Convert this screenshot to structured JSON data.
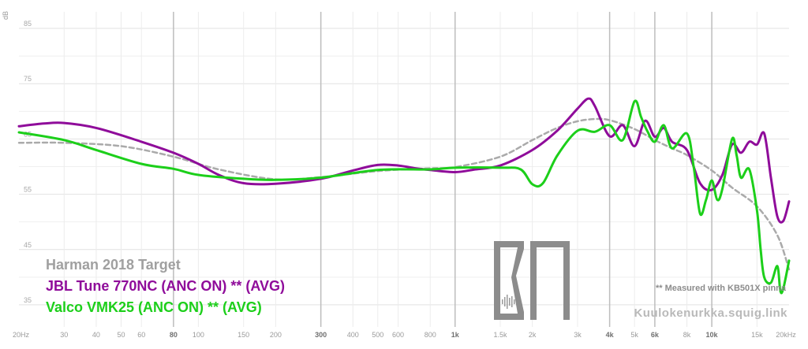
{
  "chart_data": {
    "type": "line",
    "ylabel": "dB",
    "x_scale": "log",
    "xlim": [
      20,
      20000
    ],
    "ylim": [
      31,
      88
    ],
    "y_ticks": [
      35,
      45,
      55,
      65,
      75,
      85
    ],
    "x_ticks": [
      {
        "value": 20,
        "label": "20Hz",
        "major": false
      },
      {
        "value": 30,
        "label": "30",
        "major": false
      },
      {
        "value": 40,
        "label": "40",
        "major": false
      },
      {
        "value": 50,
        "label": "50",
        "major": false
      },
      {
        "value": 60,
        "label": "60",
        "major": false
      },
      {
        "value": 80,
        "label": "80",
        "major": true
      },
      {
        "value": 100,
        "label": "100",
        "major": false
      },
      {
        "value": 150,
        "label": "150",
        "major": false
      },
      {
        "value": 200,
        "label": "200",
        "major": false
      },
      {
        "value": 300,
        "label": "300",
        "major": true
      },
      {
        "value": 400,
        "label": "400",
        "major": false
      },
      {
        "value": 500,
        "label": "500",
        "major": false
      },
      {
        "value": 600,
        "label": "600",
        "major": false
      },
      {
        "value": 800,
        "label": "800",
        "major": false
      },
      {
        "value": 1000,
        "label": "1k",
        "major": true
      },
      {
        "value": 1500,
        "label": "1.5k",
        "major": false
      },
      {
        "value": 2000,
        "label": "2k",
        "major": false
      },
      {
        "value": 3000,
        "label": "3k",
        "major": false
      },
      {
        "value": 4000,
        "label": "4k",
        "major": true
      },
      {
        "value": 5000,
        "label": "5k",
        "major": false
      },
      {
        "value": 6000,
        "label": "6k",
        "major": true
      },
      {
        "value": 8000,
        "label": "8k",
        "major": false
      },
      {
        "value": 10000,
        "label": "10k",
        "major": true
      },
      {
        "value": 15000,
        "label": "15k",
        "major": false
      },
      {
        "value": 20000,
        "label": "20kHz",
        "major": false
      }
    ],
    "grid": true,
    "legend_position": "bottom-left",
    "series": [
      {
        "name": "Harman 2018 Target",
        "color": "#aaaaaa",
        "dashed": true,
        "x": [
          20,
          30,
          50,
          80,
          120,
          200,
          300,
          500,
          800,
          1000,
          1500,
          2000,
          2500,
          3000,
          3500,
          4000,
          5000,
          6000,
          7000,
          8000,
          10000,
          12000,
          15000,
          18000,
          20000
        ],
        "y": [
          64.3,
          64.3,
          63.7,
          61.8,
          59.5,
          57.7,
          58.1,
          59.2,
          59.7,
          59.9,
          61.8,
          64.8,
          67.0,
          68.2,
          68.6,
          68.4,
          66.8,
          64.8,
          63.3,
          62.1,
          59.3,
          56.2,
          52.8,
          47.6,
          41.4
        ]
      },
      {
        "name": "JBL Tune 770NC (ANC ON) ** (AVG)",
        "color": "#8f0c9a",
        "dashed": false,
        "x": [
          20,
          25,
          30,
          40,
          60,
          80,
          100,
          120,
          150,
          200,
          300,
          400,
          500,
          600,
          700,
          800,
          1000,
          1200,
          1500,
          2000,
          2500,
          3000,
          3300,
          3500,
          4000,
          4500,
          5000,
          5500,
          6000,
          6500,
          7000,
          8000,
          9000,
          10000,
          11000,
          12000,
          13000,
          14000,
          15000,
          16000,
          17000,
          18000,
          19000,
          20000
        ],
        "y": [
          67.3,
          67.8,
          67.9,
          67.0,
          64.5,
          62.5,
          60.5,
          58.5,
          57.0,
          56.9,
          57.8,
          59.3,
          60.3,
          60.2,
          59.7,
          59.4,
          59.0,
          59.5,
          60.2,
          63.0,
          66.5,
          70.5,
          72.3,
          71.0,
          65.5,
          67.5,
          63.7,
          68.3,
          65.4,
          67.0,
          64.5,
          63.0,
          57.0,
          55.8,
          58.5,
          64.0,
          62.5,
          64.5,
          64.0,
          66.0,
          58.0,
          51.0,
          50.2,
          53.7
        ]
      },
      {
        "name": "Valco VMK25 (ANC ON) ** (AVG)",
        "color": "#1ccf1a",
        "dashed": false,
        "x": [
          20,
          30,
          40,
          60,
          80,
          100,
          150,
          200,
          300,
          500,
          800,
          1000,
          1500,
          1800,
          2000,
          2200,
          2500,
          3000,
          3500,
          4000,
          4500,
          5000,
          5300,
          5600,
          6000,
          6500,
          7000,
          8000,
          8500,
          9000,
          9500,
          10000,
          10500,
          11000,
          12000,
          12500,
          13000,
          14000,
          15000,
          15500,
          16000,
          17000,
          18000,
          18500,
          19000,
          20000
        ],
        "y": [
          66.2,
          64.8,
          63.0,
          60.5,
          59.6,
          58.5,
          57.8,
          57.6,
          58.0,
          59.4,
          59.5,
          59.8,
          59.8,
          59.5,
          56.8,
          57.0,
          62.0,
          66.5,
          66.3,
          67.5,
          64.8,
          71.8,
          69.0,
          66.5,
          64.5,
          67.5,
          63.3,
          66.0,
          60.0,
          51.5,
          54.0,
          57.5,
          54.0,
          56.0,
          65.0,
          62.0,
          58.0,
          59.5,
          52.0,
          45.0,
          40.0,
          39.0,
          42.0,
          37.5,
          38.0,
          43.0
        ]
      }
    ]
  },
  "legend": {
    "target": "Harman 2018 Target",
    "series1": "JBL Tune 770NC (ANC ON) ** (AVG)",
    "series2": "Valco VMK25 (ANC ON) ** (AVG)"
  },
  "note": "** Measured with KB501X pinna",
  "watermark": "Kuulokenurkka.squig.link",
  "logo": {
    "text": "KN",
    "color": "#8c8c8c"
  }
}
